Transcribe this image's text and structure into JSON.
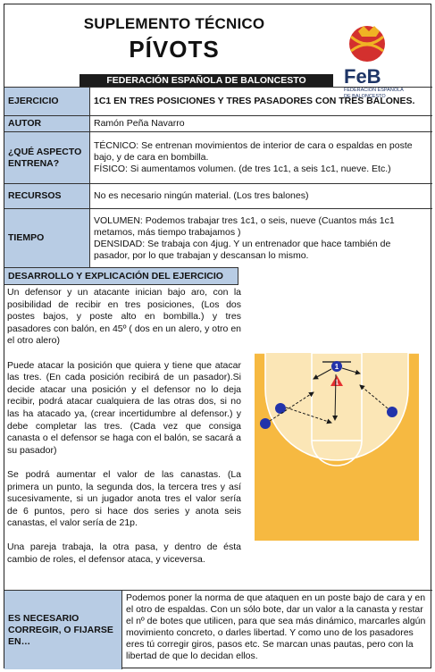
{
  "header": {
    "line1": "SUPLEMENTO TÉCNICO",
    "line2": "PÍVOTS",
    "federation": "FEDERACIÓN ESPAÑOLA DE BALONCESTO"
  },
  "logo": {
    "text": "FeB",
    "sub1": "FEDERACIÓN ESPAÑOLA",
    "sub2": "DE BALONCESTO",
    "colors": {
      "red": "#d3302e",
      "navy": "#1e3566",
      "gold": "#f0b324"
    }
  },
  "rows": [
    {
      "label": "EJERCICIO",
      "value": "1C1 EN TRES POSICIONES  Y TRES PASADORES CON TRES BALONES."
    },
    {
      "label": "AUTOR",
      "value": "Ramón Peña Navarro"
    },
    {
      "label": "¿QUÉ ASPECTO ENTRENA?",
      "value1": "TÉCNICO: Se entrenan movimientos de interior de cara o espaldas en poste bajo, y de cara en bombilla.",
      "value2": "FÍSICO: Si aumentamos volumen. (de tres 1c1, a seis 1c1, nueve. Etc.)"
    },
    {
      "label": "RECURSOS",
      "value": "No es necesario ningún material. (Los tres balones)"
    },
    {
      "label": "TIEMPO",
      "value1": "VOLUMEN: Podemos trabajar tres 1c1, o seis, nueve (Cuantos más 1c1 metamos, más tiempo trabajamos )",
      "value2": "DENSIDAD: Se trabaja con 4jug. Y un entrenador que hace también de pasador, por lo que trabajan y descansan lo mismo."
    }
  ],
  "section_title": "DESARROLLO Y EXPLICACIÓN DEL EJERCICIO",
  "paragraphs": [
    "Un defensor y un atacante inician bajo aro, con la posibilidad de recibir en tres posiciones, (Los dos postes bajos, y poste alto en bombilla.)  y tres pasadores con balón,  en 45º ( dos en un alero, y otro en el otro alero)",
    "Puede atacar la posición que quiera y tiene que atacar las tres. (En cada posición recibirá de un pasador).Si decide atacar una posición y el defensor no lo deja recibir, podrá atacar cualquiera de las otras dos, si no las ha atacado ya, (crear incertidumbre al defensor.) y debe completar las tres. (Cada vez que consiga canasta o el defensor se haga con el balón, se sacará a su pasador)",
    "Se podrá aumentar el valor de las canastas. (La primera un punto, la segunda dos, la tercera tres y así sucesivamente, si un jugador anota tres el valor sería de 6 puntos, pero si hace dos series y anota seis canastas, el valor sería de 21p.",
    "Una pareja trabaja, la otra pasa, y dentro de  ésta cambio de roles, el defensor ataca, y viceversa."
  ],
  "court": {
    "attacker_label": "1",
    "defender_label": "1",
    "colors": {
      "floor": "#f6b941",
      "key": "#fbe6b6",
      "line": "#ffffff",
      "player": "#2233aa",
      "defender": "#e53030"
    }
  },
  "bottom": {
    "label": "ES NECESARIO CORREGIR, O FIJARSE EN…",
    "value": "Podemos poner la norma de que ataquen en un poste bajo de cara y en el otro de espaldas. Con un sólo bote, dar un valor a la canasta y restar el nº de botes que utilicen, para que sea más dinámico, marcarles algún movimiento concreto, o darles libertad. Y como uno de los pasadores eres tú corregir giros, pasos etc. Se marcan unas pautas, pero con la libertad de que lo decidan  ellos."
  }
}
